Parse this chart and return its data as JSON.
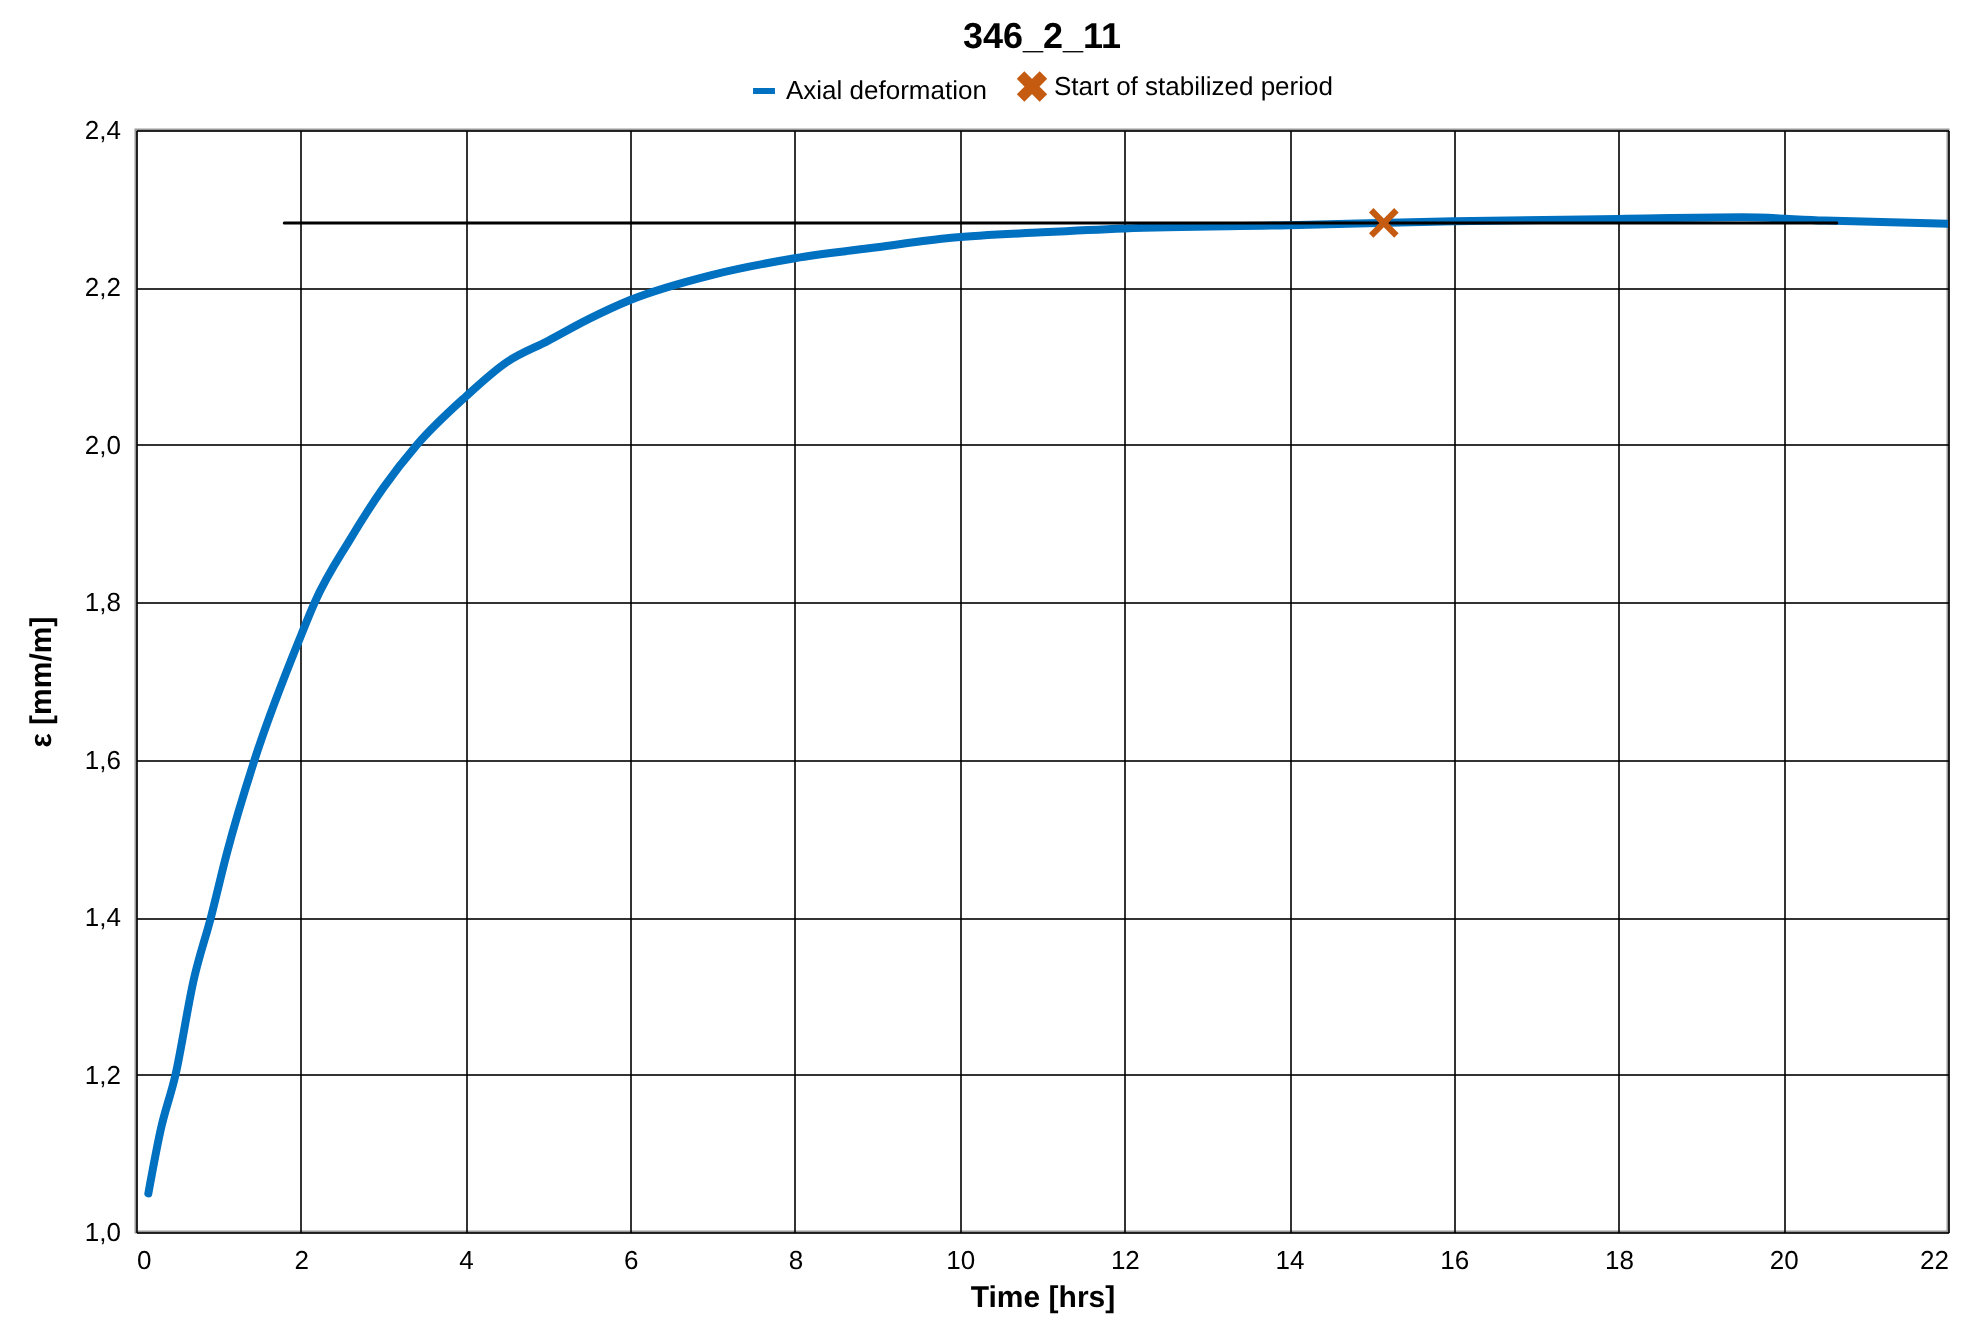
{
  "chart_data": {
    "type": "line",
    "title": "346_2_11",
    "xlabel": "Time [hrs]",
    "ylabel": "ε  [mm/m]",
    "legend": "top",
    "grid": true,
    "xlim": [
      0,
      22
    ],
    "xticks": [
      0,
      2,
      4,
      6,
      8,
      10,
      12,
      14,
      16,
      18,
      20,
      22
    ],
    "ylim": [
      1.0,
      2.4
    ],
    "yticks": [
      {
        "value": 1.0,
        "label": "1,0"
      },
      {
        "value": 1.2,
        "label": "1,2"
      },
      {
        "value": 1.4,
        "label": "1,4"
      },
      {
        "value": 1.6,
        "label": "1,6"
      },
      {
        "value": 1.8,
        "label": "1,8"
      },
      {
        "value": 2.0,
        "label": "2,0"
      },
      {
        "value": 2.2,
        "label": "2,2"
      },
      {
        "value": 2.4,
        "label": "2,4"
      }
    ],
    "series": [
      {
        "name": "Axial deformation",
        "marker": "none",
        "color": "#0070c0",
        "x": [
          0.15,
          0.3,
          0.48,
          0.7,
          0.91,
          1.1,
          1.44,
          2.0,
          2.17,
          2.6,
          3,
          3.41,
          4,
          4.5,
          5,
          5.5,
          6,
          7,
          8,
          9,
          9.9,
          11,
          12,
          14,
          16,
          18,
          19.5,
          20.5,
          22
        ],
        "values": [
          1.049,
          1.13,
          1.2,
          1.32,
          1.4,
          1.48,
          1.6,
          1.757,
          1.8,
          1.88,
          1.945,
          2.0,
          2.061,
          2.105,
          2.132,
          2.16,
          2.184,
          2.216,
          2.237,
          2.251,
          2.263,
          2.27,
          2.275,
          2.279,
          2.284,
          2.287,
          2.289,
          2.285,
          2.281
        ]
      },
      {
        "marker": "none",
        "color": "#000000",
        "x": [
          1.8,
          20.65
        ],
        "values": [
          2.282,
          2.282
        ]
      },
      {
        "name": "Start of stabilized period",
        "type": "scatter",
        "marker": "cross",
        "color": "#c55a11",
        "x": [
          15.15
        ],
        "values": [
          2.282
        ]
      }
    ]
  }
}
